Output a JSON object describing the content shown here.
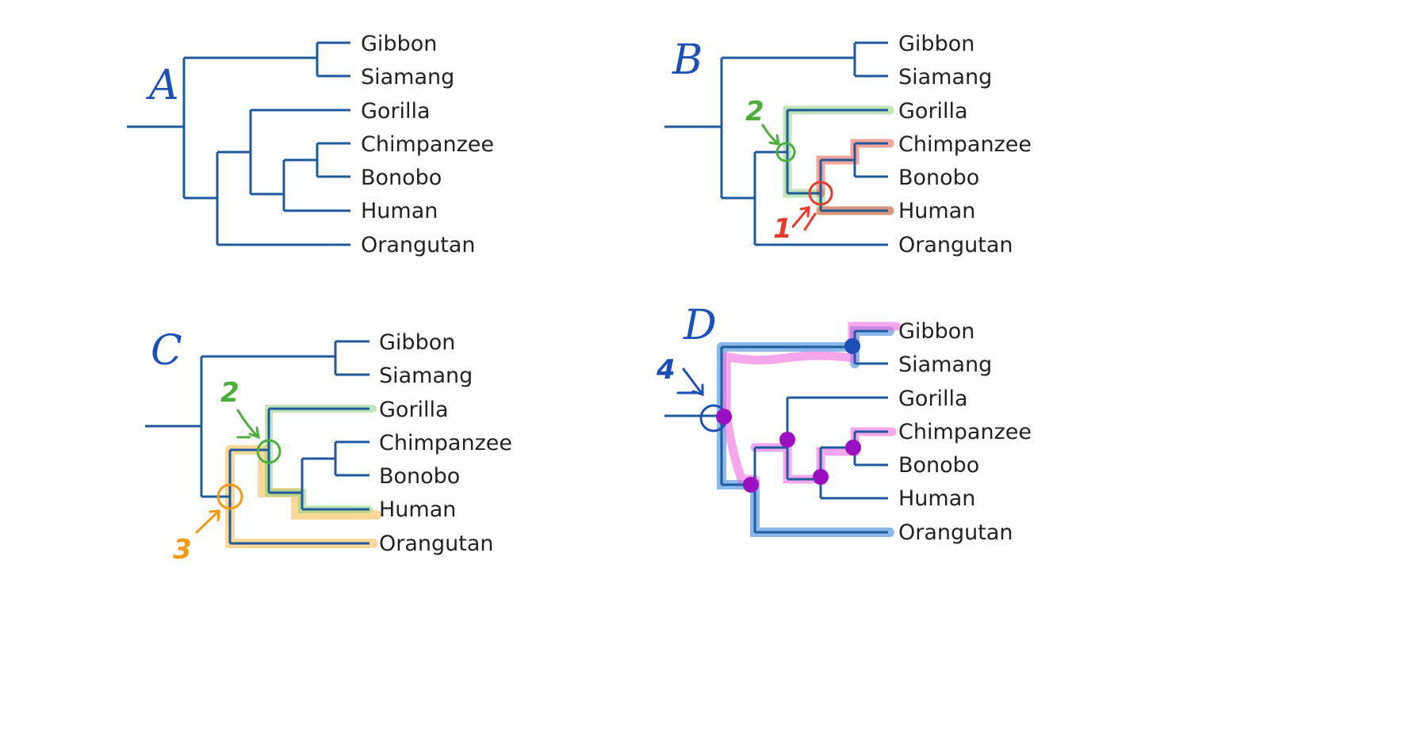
{
  "colors": {
    "branch": "#1f5a9c",
    "panel_letter": "#1d4fb8",
    "annotation_red": "#e63b2e",
    "annotation_green": "#4caf3c",
    "annotation_orange": "#f39a12",
    "annotation_blue": "#2f7fd8",
    "annotation_pink": "#f06ae0",
    "annotation_purple": "#9a10c0"
  },
  "panels": {
    "A": {
      "letter": "A",
      "taxa": [
        "Gibbon",
        "Siamang",
        "Gorilla",
        "Chimpanzee",
        "Bonobo",
        "Human",
        "Orangutan"
      ]
    },
    "B": {
      "letter": "B",
      "taxa": [
        "Gibbon",
        "Siamang",
        "Gorilla",
        "Chimpanzee",
        "Bonobo",
        "Human",
        "Orangutan"
      ],
      "marks": [
        "2",
        "1"
      ]
    },
    "C": {
      "letter": "C",
      "taxa": [
        "Gibbon",
        "Siamang",
        "Gorilla",
        "Chimpanzee",
        "Bonobo",
        "Human",
        "Orangutan"
      ],
      "marks": [
        "2",
        "3"
      ]
    },
    "D": {
      "letter": "D",
      "taxa": [
        "Gibbon",
        "Siamang",
        "Gorilla",
        "Chimpanzee",
        "Bonobo",
        "Human",
        "Orangutan"
      ],
      "marks": [
        "4"
      ]
    }
  }
}
